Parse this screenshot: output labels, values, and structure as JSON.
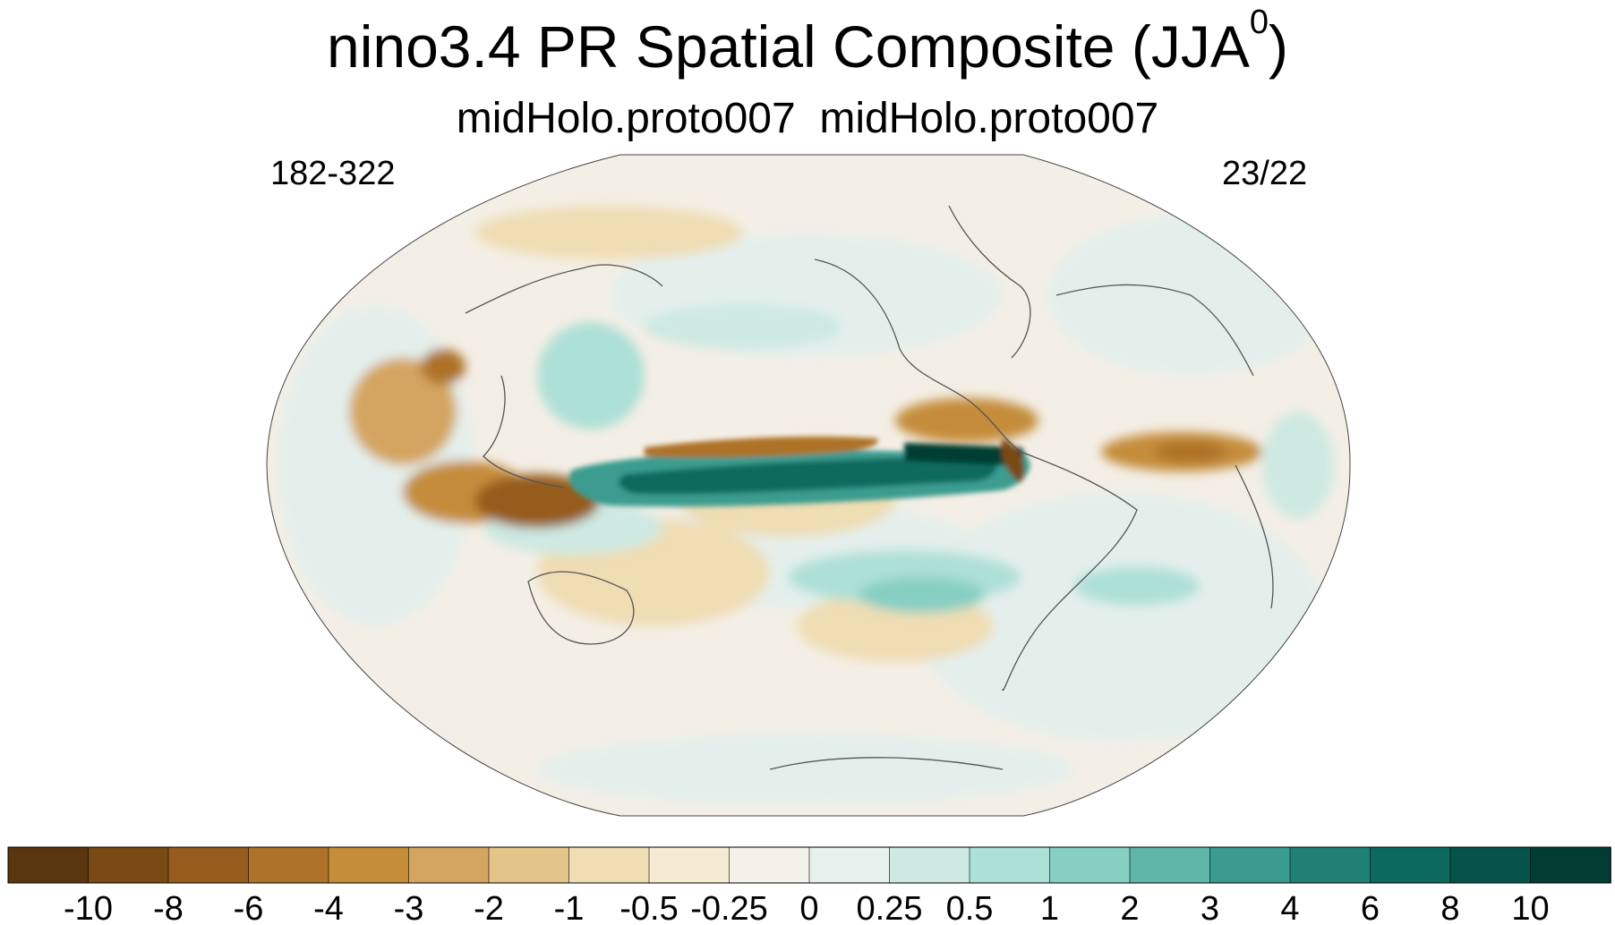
{
  "title": {
    "main": "nino3.4 PR Spatial Composite (JJA",
    "superscript": "0",
    "close": ")"
  },
  "subtitle": "midHolo.proto007  midHolo.proto007",
  "left_string": "182-322",
  "right_string": "23/22",
  "map": {
    "projection": "Robinson",
    "center_longitude": 180,
    "coastlines": true,
    "variable": "PR"
  },
  "colorbar": {
    "labels": [
      "-10",
      "-8",
      "-6",
      "-4",
      "-3",
      "-2",
      "-1",
      "-0.5",
      "-0.25",
      "0",
      "0.25",
      "0.5",
      "1",
      "2",
      "3",
      "4",
      "6",
      "8",
      "10"
    ],
    "colors": [
      "#5a3610",
      "#7a4a14",
      "#965c1c",
      "#ae7228",
      "#c58c3a",
      "#d4a560",
      "#e3c58a",
      "#efddb4",
      "#f5ebd3",
      "#f4f1ea",
      "#e6f1ee",
      "#cde9e2",
      "#ade0d7",
      "#86cfc2",
      "#5fb7a9",
      "#3a9c8f",
      "#1f8174",
      "#0b6a5d",
      "#05534a",
      "#023d33"
    ]
  }
}
